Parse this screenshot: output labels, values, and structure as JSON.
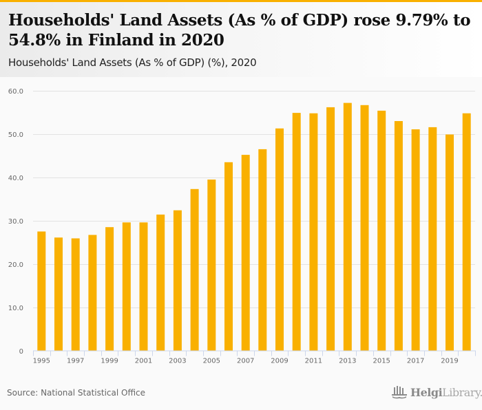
{
  "header": {
    "title": "Households' Land Assets (As % of GDP) rose 9.79% to 54.8% in Finland in 2020",
    "subtitle": "Households' Land Assets (As % of GDP) (%), 2020"
  },
  "footer": {
    "source": "Source: National Statistical Office",
    "logo_bold": "Helgi",
    "logo_light": "Library."
  },
  "colors": {
    "bar": "#f9b000",
    "accent": "#f9b000",
    "grid": "#e2e2e2",
    "axis": "#ccd6eb"
  },
  "chart_data": {
    "type": "bar",
    "title": "Households' Land Assets (As % of GDP) rose 9.79% to 54.8% in Finland in 2020",
    "subtitle": "Households' Land Assets (As % of GDP) (%), 2020",
    "xlabel": "",
    "ylabel": "",
    "categories": [
      "1995",
      "1996",
      "1997",
      "1998",
      "1999",
      "2000",
      "2001",
      "2002",
      "2003",
      "2004",
      "2005",
      "2006",
      "2007",
      "2008",
      "2009",
      "2010",
      "2011",
      "2012",
      "2013",
      "2014",
      "2015",
      "2016",
      "2017",
      "2018",
      "2019",
      "2020"
    ],
    "series": [
      {
        "name": "Households' Land Assets (As % of GDP)",
        "values": [
          27.5,
          26.1,
          25.9,
          26.7,
          28.5,
          29.6,
          29.6,
          31.4,
          32.4,
          37.3,
          39.5,
          43.5,
          45.2,
          46.5,
          51.3,
          54.9,
          54.8,
          56.2,
          57.2,
          56.7,
          55.4,
          53.0,
          51.1,
          51.6,
          49.9,
          54.8
        ]
      }
    ],
    "ylim": [
      0,
      60
    ],
    "yticks": [
      0,
      10,
      20,
      30,
      40,
      50,
      60
    ],
    "ytick_labels": [
      "0",
      "10.0",
      "20.0",
      "30.0",
      "40.0",
      "50.0",
      "60.0"
    ],
    "xtick_labels": [
      "1995",
      "1997",
      "1999",
      "2001",
      "2003",
      "2005",
      "2007",
      "2009",
      "2011",
      "2013",
      "2015",
      "2017",
      "2019"
    ],
    "grid": true,
    "legend": "none"
  }
}
